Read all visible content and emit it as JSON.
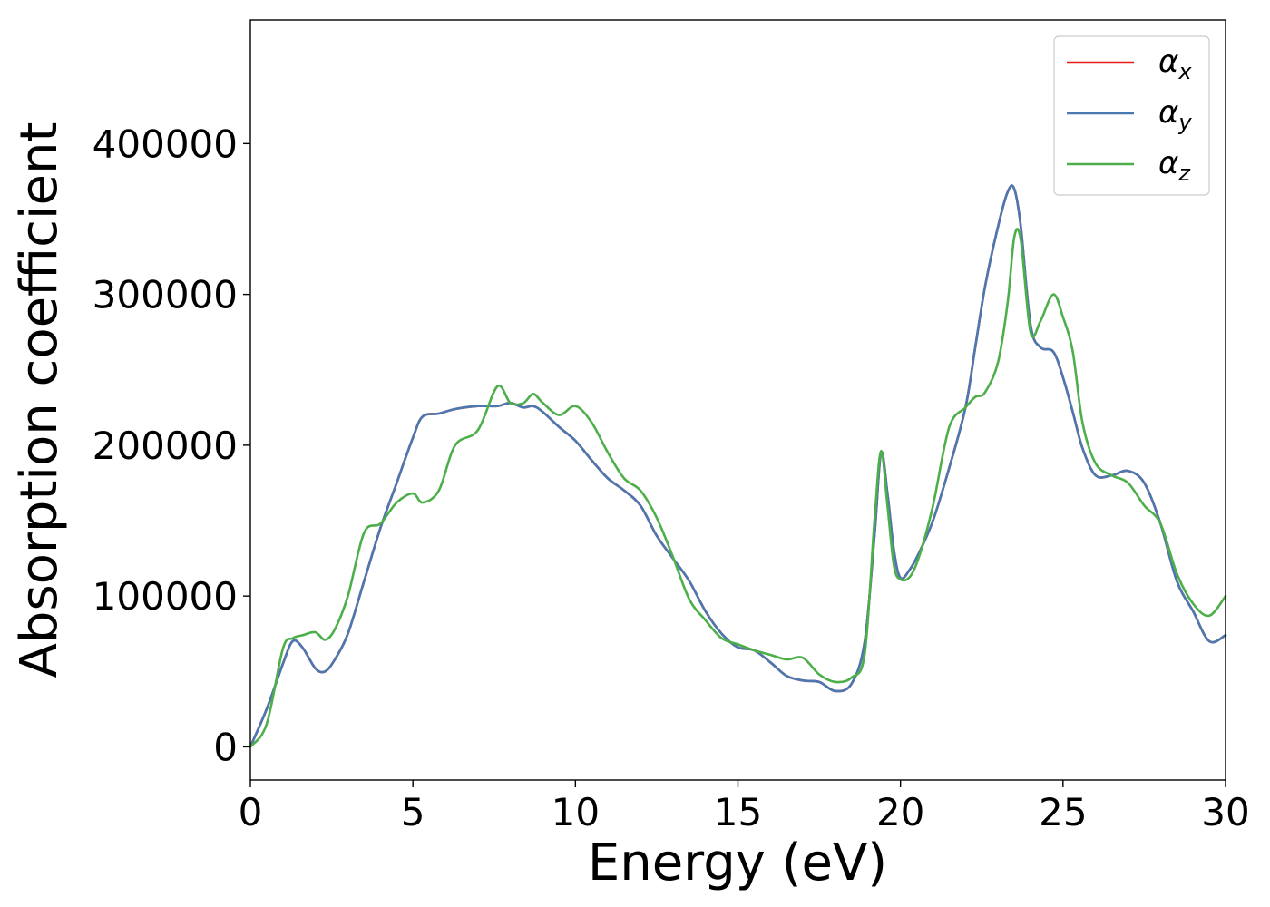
{
  "chart_data": {
    "type": "line",
    "title": "",
    "xlabel": "Energy (eV)",
    "ylabel": "Absorption coefficient",
    "xlim": [
      0,
      30
    ],
    "ylim": [
      -22000,
      482000
    ],
    "xticks": [
      0,
      5,
      10,
      15,
      20,
      25,
      30
    ],
    "yticks": [
      0,
      100000,
      200000,
      300000,
      400000
    ],
    "grid": false,
    "legend_position": "top-right",
    "x": [
      0,
      0.5,
      1,
      1.3,
      1.6,
      2,
      2.3,
      2.6,
      3,
      3.5,
      4,
      4.5,
      5,
      5.3,
      5.8,
      6.3,
      7,
      7.6,
      8,
      8.4,
      8.7,
      9,
      9.5,
      10,
      10.5,
      11,
      11.5,
      12,
      12.5,
      13,
      13.5,
      14,
      14.5,
      15,
      15.5,
      16,
      16.5,
      17,
      17.5,
      18,
      18.5,
      18.9,
      19.2,
      19.4,
      19.6,
      19.8,
      20,
      20.3,
      20.6,
      21,
      21.5,
      22,
      22.3,
      22.6,
      23,
      23.3,
      23.5,
      23.7,
      24,
      24.3,
      24.7,
      25,
      25.3,
      25.6,
      26,
      26.5,
      27,
      27.5,
      28,
      28.5,
      29,
      29.5,
      30
    ],
    "series": [
      {
        "name": "x",
        "color": "#e41a1c",
        "values": [
          0,
          25000,
          55000,
          70000,
          66000,
          52000,
          50000,
          58000,
          75000,
          110000,
          145000,
          175000,
          205000,
          219000,
          221000,
          224000,
          226000,
          226000,
          228000,
          225000,
          226000,
          222000,
          212000,
          203000,
          190000,
          178000,
          170000,
          160000,
          140000,
          125000,
          110000,
          90000,
          75000,
          66000,
          64000,
          56000,
          47000,
          44000,
          43000,
          37000,
          42000,
          70000,
          140000,
          195000,
          168000,
          130000,
          112000,
          118000,
          130000,
          150000,
          185000,
          225000,
          265000,
          305000,
          345000,
          368000,
          370000,
          345000,
          280000,
          265000,
          262000,
          245000,
          222000,
          198000,
          180000,
          180000,
          183000,
          175000,
          148000,
          110000,
          90000,
          70000,
          74000
        ]
      },
      {
        "name": "y",
        "color": "#4a78b0",
        "values": [
          0,
          25000,
          55000,
          70000,
          66000,
          52000,
          50000,
          58000,
          75000,
          110000,
          145000,
          175000,
          205000,
          219000,
          221000,
          224000,
          226000,
          226000,
          228000,
          225000,
          226000,
          222000,
          212000,
          203000,
          190000,
          178000,
          170000,
          160000,
          140000,
          125000,
          110000,
          90000,
          75000,
          66000,
          64000,
          56000,
          47000,
          44000,
          43000,
          37000,
          42000,
          70000,
          140000,
          195000,
          168000,
          130000,
          112000,
          118000,
          130000,
          150000,
          185000,
          225000,
          265000,
          305000,
          345000,
          368000,
          370000,
          345000,
          280000,
          265000,
          262000,
          245000,
          222000,
          198000,
          180000,
          180000,
          183000,
          175000,
          148000,
          110000,
          90000,
          70000,
          74000
        ]
      },
      {
        "name": "z",
        "color": "#4daf4a",
        "values": [
          0,
          15000,
          65000,
          72000,
          74000,
          76000,
          71000,
          78000,
          100000,
          142000,
          148000,
          162000,
          168000,
          162000,
          170000,
          200000,
          210000,
          239000,
          228000,
          228000,
          234000,
          228000,
          220000,
          226000,
          215000,
          195000,
          178000,
          170000,
          152000,
          126000,
          98000,
          84000,
          72000,
          68000,
          64000,
          61000,
          58000,
          59000,
          48000,
          43000,
          46000,
          62000,
          150000,
          196000,
          160000,
          120000,
          111000,
          113000,
          128000,
          160000,
          212000,
          225000,
          232000,
          235000,
          255000,
          295000,
          338000,
          336000,
          275000,
          282000,
          300000,
          285000,
          262000,
          215000,
          188000,
          180000,
          175000,
          160000,
          148000,
          115000,
          95000,
          87000,
          100000
        ]
      }
    ]
  }
}
